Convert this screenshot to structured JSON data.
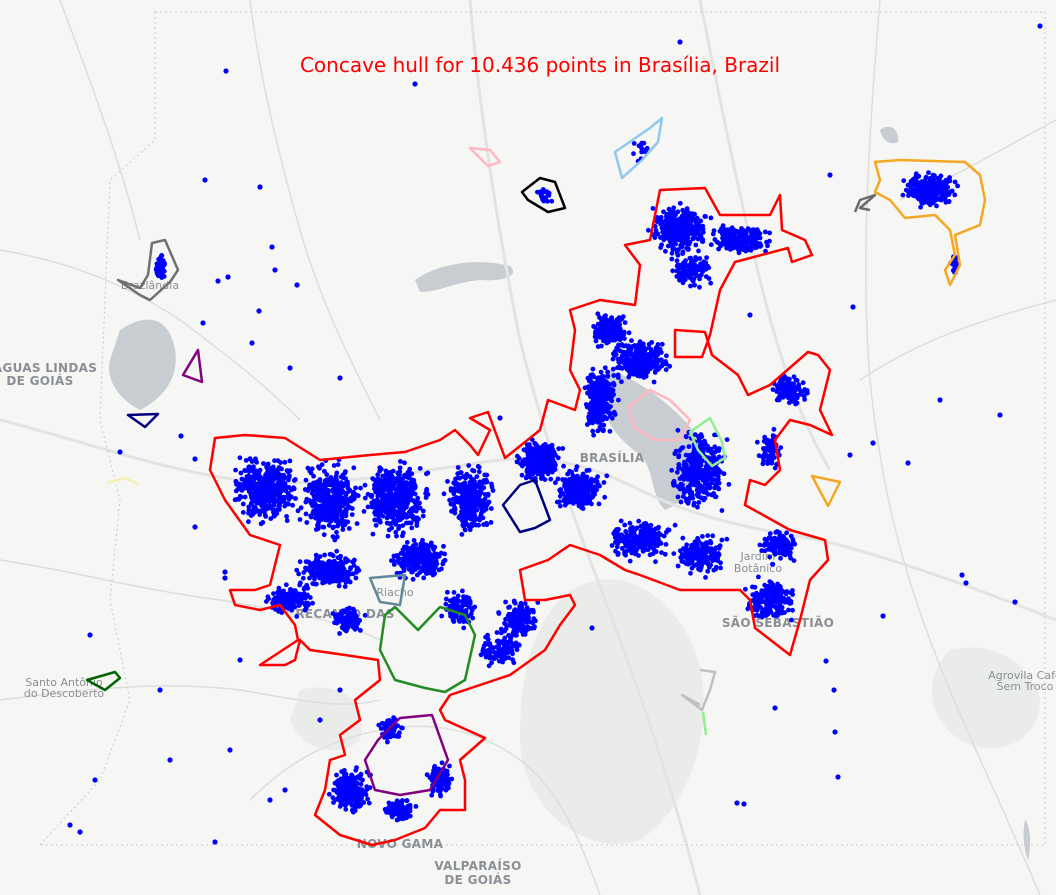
{
  "title": "Concave hull for 10.436 points in Brasília, Brazil",
  "place_labels": [
    {
      "id": "aguas-lindas-1",
      "text": "ÁGUAS LINDAS"
    },
    {
      "id": "aguas-lindas-2",
      "text": "DE GOIÁS"
    },
    {
      "id": "brasilia",
      "text": "BRASÍLIA"
    },
    {
      "id": "recanto",
      "text": "RECANTO DAS"
    },
    {
      "id": "riacho",
      "text": "Riacho"
    },
    {
      "id": "sao-sebastiao",
      "text": "SÃO SEBASTIÃO"
    },
    {
      "id": "jardim-1",
      "text": "Jardim"
    },
    {
      "id": "jardim-2",
      "text": "Botânico"
    },
    {
      "id": "santo-antonio-1",
      "text": "Santo Antônio"
    },
    {
      "id": "santo-antonio-2",
      "text": "do Descoberto"
    },
    {
      "id": "agrovila-1",
      "text": "Agrovila Café"
    },
    {
      "id": "agrovila-2",
      "text": "Sem Troco"
    },
    {
      "id": "novo-gama",
      "text": "NOVO GAMA"
    },
    {
      "id": "valparaiso-1",
      "text": "VALPARAÍSO"
    },
    {
      "id": "valparaiso-2",
      "text": "DE GOIÁS"
    },
    {
      "id": "brazlandia",
      "text": "Brazlândia"
    }
  ],
  "colors": {
    "points": "#0000ff",
    "main_hull": "#ff0000",
    "title": "#ff0000"
  },
  "hulls": [
    {
      "id": "main",
      "color": "#ff0000"
    },
    {
      "id": "orange-ne",
      "color": "#f5a623"
    },
    {
      "id": "orange-e",
      "color": "#f5a623"
    },
    {
      "id": "gray-ne",
      "color": "#6b6b6b"
    },
    {
      "id": "black-n",
      "color": "#000000"
    },
    {
      "id": "pink-n",
      "color": "#ffb6c1"
    },
    {
      "id": "lightblue-n",
      "color": "#8ec9f0"
    },
    {
      "id": "gray-brazlandia",
      "color": "#707070"
    },
    {
      "id": "purple-w",
      "color": "#800080"
    },
    {
      "id": "navy-w",
      "color": "#000080"
    },
    {
      "id": "lightyellow-w",
      "color": "#f4f0b0"
    },
    {
      "id": "green-sw",
      "color": "#006400"
    },
    {
      "id": "navy-center",
      "color": "#000080"
    },
    {
      "id": "pink-center",
      "color": "#ffb6c1"
    },
    {
      "id": "lightgreen-center",
      "color": "#90ee90"
    },
    {
      "id": "slate-center",
      "color": "#5f8a9b"
    },
    {
      "id": "green-heart",
      "color": "#228b22"
    },
    {
      "id": "purple-south",
      "color": "#800080"
    },
    {
      "id": "lightgray-se",
      "color": "#c0c0c0"
    },
    {
      "id": "lightgreen-se",
      "color": "#90ee90"
    }
  ]
}
